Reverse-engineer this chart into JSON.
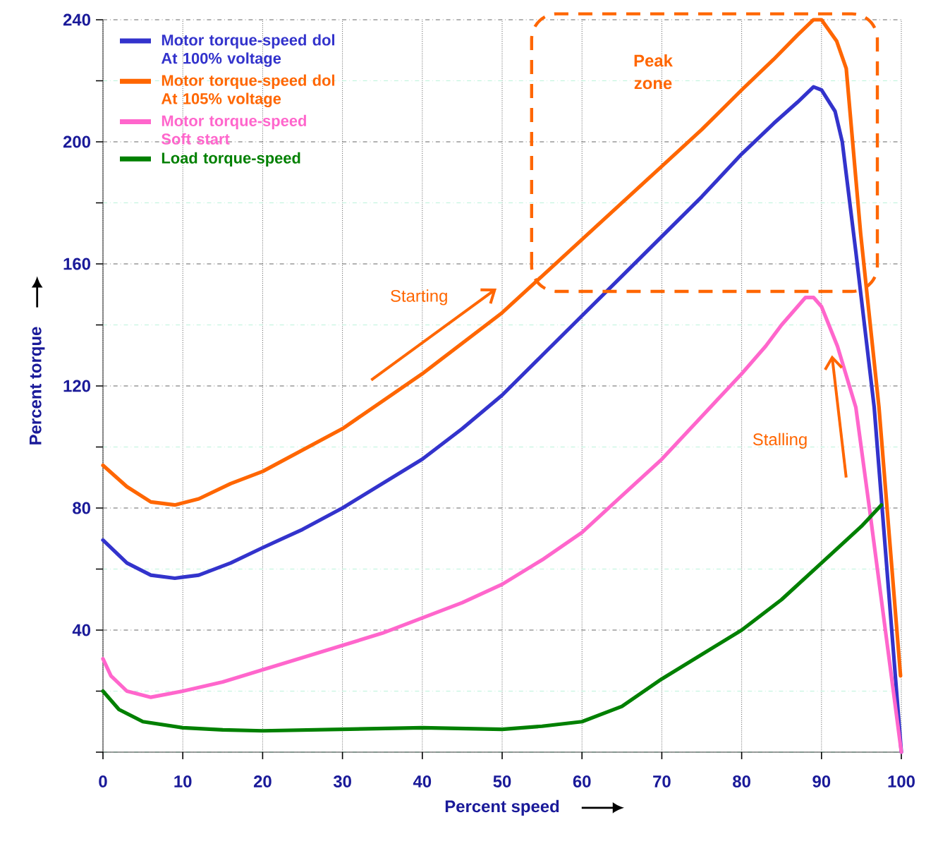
{
  "chart_data": {
    "type": "line",
    "xlabel": "Percent speed",
    "ylabel": "Percent torque",
    "xlim": [
      0,
      100
    ],
    "ylim": [
      0,
      240
    ],
    "xticks": [
      0,
      10,
      20,
      30,
      40,
      50,
      60,
      70,
      80,
      90,
      100
    ],
    "yticks": [
      {
        "value": 0,
        "label": null
      },
      {
        "value": 20,
        "label": null
      },
      40,
      {
        "value": 60,
        "label": null
      },
      80,
      {
        "value": 100,
        "label": null
      },
      120,
      {
        "value": 140,
        "label": null
      },
      160,
      {
        "value": 180,
        "label": null
      },
      200,
      {
        "value": 220,
        "label": null
      },
      240
    ],
    "grid": true,
    "legend": "top left",
    "marker": "none",
    "line_style": "solid",
    "series": [
      {
        "name": "Motor torque-speed dol At 100% voltage",
        "color": "#3333cc",
        "x": [
          0,
          3,
          6,
          9,
          12,
          16,
          20,
          25,
          30,
          35,
          40,
          45,
          50,
          55,
          60,
          65,
          70,
          75,
          80,
          84,
          87,
          89,
          90,
          91.7,
          92.6,
          94.3,
          96.6,
          100
        ],
        "values": [
          69.5,
          62,
          58,
          57,
          58,
          62,
          67,
          73,
          80,
          88,
          96,
          106,
          117,
          130,
          143,
          156,
          169,
          182,
          196,
          206,
          213,
          218,
          217,
          210,
          200,
          164,
          113,
          0
        ]
      },
      {
        "name": "Motor torque-speed dol At 105% voltage",
        "color": "#ff6600",
        "x": [
          0,
          3,
          6,
          9,
          12,
          16,
          20,
          25,
          30,
          35,
          40,
          45,
          50,
          55,
          60,
          65,
          70,
          75,
          80,
          84,
          87,
          89,
          90,
          91.9,
          93.1,
          94.9,
          97.2,
          99.9
        ],
        "values": [
          94,
          87,
          82,
          81,
          83,
          88,
          92,
          99,
          106,
          115,
          124,
          134,
          144,
          156,
          168,
          180,
          192,
          204,
          217,
          227,
          235,
          240,
          240,
          233,
          224,
          170,
          113,
          25
        ]
      },
      {
        "name": "Motor torque-speed Soft start",
        "color": "#ff66cc",
        "x": [
          0,
          1,
          3,
          6,
          10,
          15,
          20,
          25,
          30,
          35,
          40,
          45,
          50,
          55,
          60,
          65,
          70,
          75,
          80,
          83,
          85,
          87,
          88,
          89,
          90,
          92,
          94.3,
          96,
          100
        ],
        "values": [
          30.6,
          25,
          20,
          18,
          20,
          23,
          27,
          31,
          35,
          39,
          44,
          49,
          55,
          63,
          72,
          84,
          96,
          110,
          124,
          133,
          140,
          146,
          149,
          149,
          146,
          133,
          113,
          80,
          0
        ]
      },
      {
        "name": "Load torque-speed",
        "color": "#008000",
        "x": [
          0,
          2,
          5,
          10,
          15,
          20,
          30,
          40,
          50,
          55,
          60,
          65,
          70,
          75,
          80,
          85,
          90,
          95,
          97.5
        ],
        "values": [
          20,
          14,
          10,
          8,
          7.3,
          7,
          7.5,
          8,
          7.5,
          8.5,
          10,
          15,
          24,
          32,
          40,
          50,
          62,
          74,
          81
        ]
      }
    ],
    "annotations": [
      "Starting",
      "Peak zone",
      "Stalling"
    ]
  }
}
